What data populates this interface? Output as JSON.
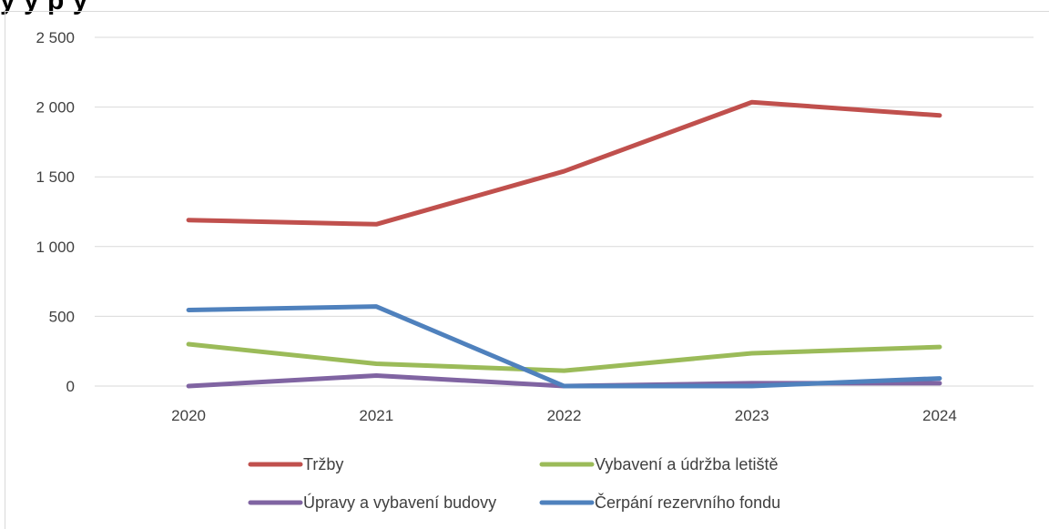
{
  "chart_data": {
    "type": "line",
    "title": "",
    "title_fragment": "y y p y",
    "xlabel": "",
    "ylabel": "",
    "categories": [
      "2020",
      "2021",
      "2022",
      "2023",
      "2024"
    ],
    "ylim": [
      0,
      2500
    ],
    "yticks": [
      0,
      500,
      1000,
      1500,
      2000,
      2500
    ],
    "ytick_labels": [
      "0",
      "500",
      "1 000",
      "1 500",
      "2 000",
      "2 500"
    ],
    "grid": true,
    "legend_position": "bottom",
    "series": [
      {
        "name": "Tržby",
        "color": "#c0504d",
        "values": [
          1190,
          1160,
          1540,
          2035,
          1940
        ]
      },
      {
        "name": "Vybavení a údržba letiště",
        "color": "#9bbb59",
        "values": [
          300,
          160,
          110,
          235,
          280
        ]
      },
      {
        "name": "Úpravy a vybavení budovy",
        "color": "#8064a2",
        "values": [
          0,
          75,
          0,
          20,
          20
        ]
      },
      {
        "name": "Čerpání rezervního fondu",
        "color": "#4f81bd",
        "values": [
          545,
          570,
          0,
          0,
          55
        ]
      }
    ]
  }
}
